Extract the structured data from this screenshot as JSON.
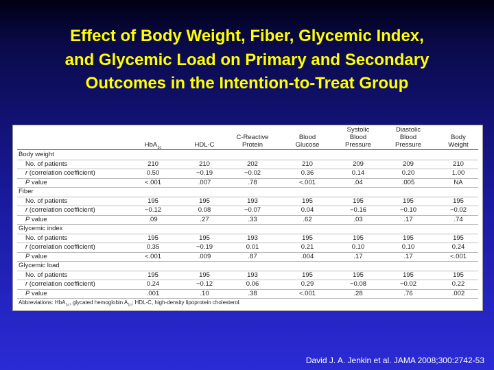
{
  "slide": {
    "title": [
      "Effect of Body Weight, Fiber, Glycemic Index,",
      "and Glycemic Load on Primary and Secondary",
      "Outcomes in the Intention-to-Treat Group"
    ],
    "citation": "David J. A. Jenkin et al. JAMA 2008;300:2742-53"
  },
  "table": {
    "columns": [
      {
        "lines": [
          "HbA"
        ],
        "sub": "1c"
      },
      {
        "lines": [
          "HDL-C"
        ]
      },
      {
        "lines": [
          "C-Reactive",
          "Protein"
        ]
      },
      {
        "lines": [
          "Blood",
          "Glucose"
        ]
      },
      {
        "lines": [
          "Systolic",
          "Blood",
          "Pressure"
        ]
      },
      {
        "lines": [
          "Diastolic",
          "Blood",
          "Pressure"
        ]
      },
      {
        "lines": [
          "Body",
          "Weight"
        ]
      }
    ],
    "groups": [
      {
        "name": "Body weight",
        "rows": [
          {
            "label": {
              "text": "No. of patients"
            },
            "cells": [
              "210",
              "210",
              "202",
              "210",
              "209",
              "209",
              "210"
            ]
          },
          {
            "label": {
              "em": "r",
              "text": " (correlation coefficient)"
            },
            "cells": [
              "0.50",
              "−0.19",
              "−0.02",
              "0.36",
              "0.14",
              "0.20",
              "1.00"
            ]
          },
          {
            "label": {
              "em": "P",
              "text": " value"
            },
            "cells": [
              "<.001",
              ".007",
              ".78",
              "<.001",
              ".04",
              ".005",
              "NA"
            ]
          }
        ]
      },
      {
        "name": "Fiber",
        "rows": [
          {
            "label": {
              "text": "No. of patients"
            },
            "cells": [
              "195",
              "195",
              "193",
              "195",
              "195",
              "195",
              "195"
            ]
          },
          {
            "label": {
              "em": "r",
              "text": " (correlation coefficient)"
            },
            "cells": [
              "−0.12",
              "0.08",
              "−0.07",
              "0.04",
              "−0.16",
              "−0.10",
              "−0.02"
            ]
          },
          {
            "label": {
              "em": "P",
              "text": " value"
            },
            "cells": [
              ".09",
              ".27",
              ".33",
              ".62",
              ".03",
              ".17",
              ".74"
            ]
          }
        ]
      },
      {
        "name": "Glycemic index",
        "rows": [
          {
            "label": {
              "text": "No. of patients"
            },
            "cells": [
              "195",
              "195",
              "193",
              "195",
              "195",
              "195",
              "195"
            ]
          },
          {
            "label": {
              "em": "r",
              "text": " (correlation coefficient)"
            },
            "cells": [
              "0.35",
              "−0.19",
              "0.01",
              "0.21",
              "0.10",
              "0.10",
              "0.24"
            ]
          },
          {
            "label": {
              "em": "P",
              "text": " value"
            },
            "cells": [
              "<.001",
              ".009",
              ".87",
              ".004",
              ".17",
              ".17",
              "<.001"
            ]
          }
        ]
      },
      {
        "name": "Glycemic load",
        "rows": [
          {
            "label": {
              "text": "No. of patients"
            },
            "cells": [
              "195",
              "195",
              "193",
              "195",
              "195",
              "195",
              "195"
            ]
          },
          {
            "label": {
              "em": "r",
              "text": " (correlation coefficient)"
            },
            "cells": [
              "0.24",
              "−0.12",
              "0.06",
              "0.29",
              "−0.08",
              "−0.02",
              "0.22"
            ]
          },
          {
            "label": {
              "em": "P",
              "text": " value"
            },
            "cells": [
              ".001",
              ".10",
              ".38",
              "<.001",
              ".28",
              ".76",
              ".002"
            ]
          }
        ]
      }
    ],
    "footnote": [
      "Abbreviations: HbA",
      "1c",
      ", glycated hemoglobin A",
      "1c",
      "; HDL-C, high-density lipoprotein cholesterol."
    ]
  }
}
